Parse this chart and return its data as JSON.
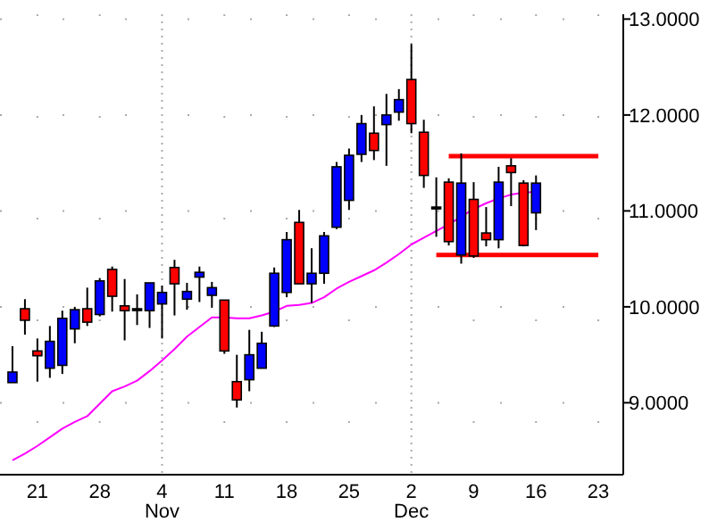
{
  "chart_data": {
    "type": "candlestick",
    "categories": [
      null,
      null,
      "21",
      null,
      null,
      null,
      null,
      "28",
      null,
      null,
      null,
      null,
      "4\nNov",
      null,
      null,
      null,
      null,
      "11",
      null,
      null,
      null,
      null,
      "18",
      null,
      null,
      null,
      null,
      "25",
      null,
      null,
      null,
      null,
      "2\nDec",
      null,
      null,
      null,
      null,
      "9",
      null,
      null,
      null,
      null,
      "16",
      null,
      null,
      null,
      null,
      "23"
    ],
    "ohlc": [
      [
        9.21,
        9.59,
        9.21,
        9.32
      ],
      [
        9.98,
        10.08,
        9.71,
        9.86
      ],
      [
        9.54,
        9.67,
        9.22,
        9.49
      ],
      [
        9.36,
        9.8,
        9.26,
        9.64
      ],
      [
        9.39,
        9.96,
        9.3,
        9.88
      ],
      [
        9.77,
        10.0,
        9.62,
        9.97
      ],
      [
        9.98,
        10.2,
        9.8,
        9.84
      ],
      [
        9.92,
        10.3,
        9.9,
        10.27
      ],
      [
        10.39,
        10.42,
        9.95,
        10.11
      ],
      [
        10.01,
        10.29,
        9.65,
        9.96
      ],
      [
        9.98,
        10.13,
        9.81,
        9.98
      ],
      [
        9.96,
        10.25,
        9.78,
        10.25
      ],
      [
        10.03,
        10.22,
        9.67,
        10.15
      ],
      [
        10.41,
        10.49,
        9.91,
        10.24
      ],
      [
        10.08,
        10.25,
        9.97,
        10.16
      ],
      [
        10.31,
        10.42,
        10.05,
        10.36
      ],
      [
        10.12,
        10.26,
        9.99,
        10.2
      ],
      [
        10.07,
        10.07,
        9.51,
        9.54
      ],
      [
        9.22,
        9.5,
        8.95,
        9.03
      ],
      [
        9.24,
        9.76,
        9.12,
        9.5
      ],
      [
        9.36,
        9.74,
        9.36,
        9.62
      ],
      [
        9.8,
        10.41,
        9.79,
        10.35
      ],
      [
        10.15,
        10.78,
        10.1,
        10.7
      ],
      [
        10.88,
        11.01,
        10.24,
        10.24
      ],
      [
        10.24,
        10.61,
        10.04,
        10.35
      ],
      [
        10.35,
        10.78,
        10.24,
        10.74
      ],
      [
        10.83,
        11.51,
        10.81,
        11.46
      ],
      [
        11.11,
        11.65,
        11.01,
        11.58
      ],
      [
        11.59,
        12.0,
        11.51,
        11.91
      ],
      [
        11.81,
        12.09,
        11.53,
        11.63
      ],
      [
        11.9,
        12.22,
        11.47,
        12.0
      ],
      [
        12.03,
        12.27,
        11.94,
        12.16
      ],
      [
        12.37,
        12.74,
        11.81,
        11.91
      ],
      [
        11.82,
        11.95,
        11.24,
        11.37
      ],
      [
        11.04,
        11.35,
        10.73,
        11.04
      ],
      [
        11.3,
        11.34,
        10.64,
        10.68
      ],
      [
        10.54,
        11.6,
        10.45,
        11.29
      ],
      [
        11.12,
        11.3,
        10.51,
        10.53
      ],
      [
        10.77,
        11.04,
        10.63,
        10.7
      ],
      [
        10.7,
        11.46,
        10.61,
        11.3
      ],
      [
        11.47,
        11.55,
        11.05,
        11.4
      ],
      [
        11.29,
        11.32,
        10.63,
        10.64
      ],
      [
        10.98,
        11.37,
        10.8,
        11.29
      ],
      null,
      null,
      null,
      null,
      null
    ],
    "colors": [
      "#0000ff",
      "#ff0000",
      "#ff0000",
      "#0000ff",
      "#0000ff",
      "#0000ff",
      "#ff0000",
      "#0000ff",
      "#ff0000",
      "#ff0000",
      "#000000",
      "#0000ff",
      "#0000ff",
      "#ff0000",
      "#0000ff",
      "#0000ff",
      "#0000ff",
      "#ff0000",
      "#ff0000",
      "#0000ff",
      "#0000ff",
      "#0000ff",
      "#0000ff",
      "#ff0000",
      "#0000ff",
      "#0000ff",
      "#0000ff",
      "#0000ff",
      "#0000ff",
      "#ff0000",
      "#0000ff",
      "#0000ff",
      "#ff0000",
      "#ff0000",
      "#000000",
      "#ff0000",
      "#0000ff",
      "#ff0000",
      "#ff0000",
      "#0000ff",
      "#ff0000",
      "#ff0000",
      "#0000ff",
      null,
      null,
      null,
      null,
      null
    ],
    "series": [
      {
        "type": "line",
        "color": "#ff00ff",
        "values": [
          8.4,
          8.47,
          8.55,
          8.64,
          8.73,
          8.8,
          8.86,
          8.99,
          9.12,
          9.17,
          9.23,
          9.33,
          9.44,
          9.56,
          9.69,
          9.79,
          9.89,
          9.89,
          9.88,
          9.88,
          9.91,
          9.95,
          10.01,
          10.02,
          10.04,
          10.1,
          10.19,
          10.26,
          10.32,
          10.38,
          10.46,
          10.55,
          10.65,
          10.72,
          10.79,
          10.86,
          10.94,
          11.02,
          11.08,
          11.13,
          11.17,
          11.19,
          11.2,
          null,
          null,
          null,
          null,
          null
        ]
      },
      {
        "type": "line",
        "color": "#ff0000",
        "values": [
          null,
          null,
          null,
          null,
          null,
          null,
          null,
          null,
          null,
          null,
          null,
          null,
          null,
          null,
          null,
          null,
          null,
          null,
          null,
          null,
          null,
          null,
          null,
          null,
          null,
          null,
          null,
          null,
          null,
          null,
          null,
          null,
          null,
          null,
          null,
          11.57,
          11.57,
          11.57,
          11.57,
          11.57,
          11.57,
          11.57,
          11.57,
          11.57,
          11.57,
          11.57,
          11.57,
          11.57
        ]
      },
      {
        "type": "line",
        "color": "#ff0000",
        "values": [
          null,
          null,
          null,
          null,
          null,
          null,
          null,
          null,
          null,
          null,
          null,
          null,
          null,
          null,
          null,
          null,
          null,
          null,
          null,
          null,
          null,
          null,
          null,
          null,
          null,
          null,
          null,
          null,
          null,
          null,
          null,
          null,
          null,
          null,
          10.54,
          10.54,
          10.54,
          10.54,
          10.54,
          10.54,
          10.54,
          10.54,
          10.54,
          10.54,
          10.54,
          10.54,
          10.54,
          10.54
        ]
      }
    ],
    "ylim": [
      8.25,
      13.05
    ],
    "yticks": [
      {
        "value": 9,
        "label": "9.0000"
      },
      {
        "value": 10,
        "label": "10.0000"
      },
      {
        "value": 11,
        "label": "11.0000"
      },
      {
        "value": 12,
        "label": "12.0000"
      },
      {
        "value": 13,
        "label": "13.0000"
      }
    ],
    "grid": true
  }
}
